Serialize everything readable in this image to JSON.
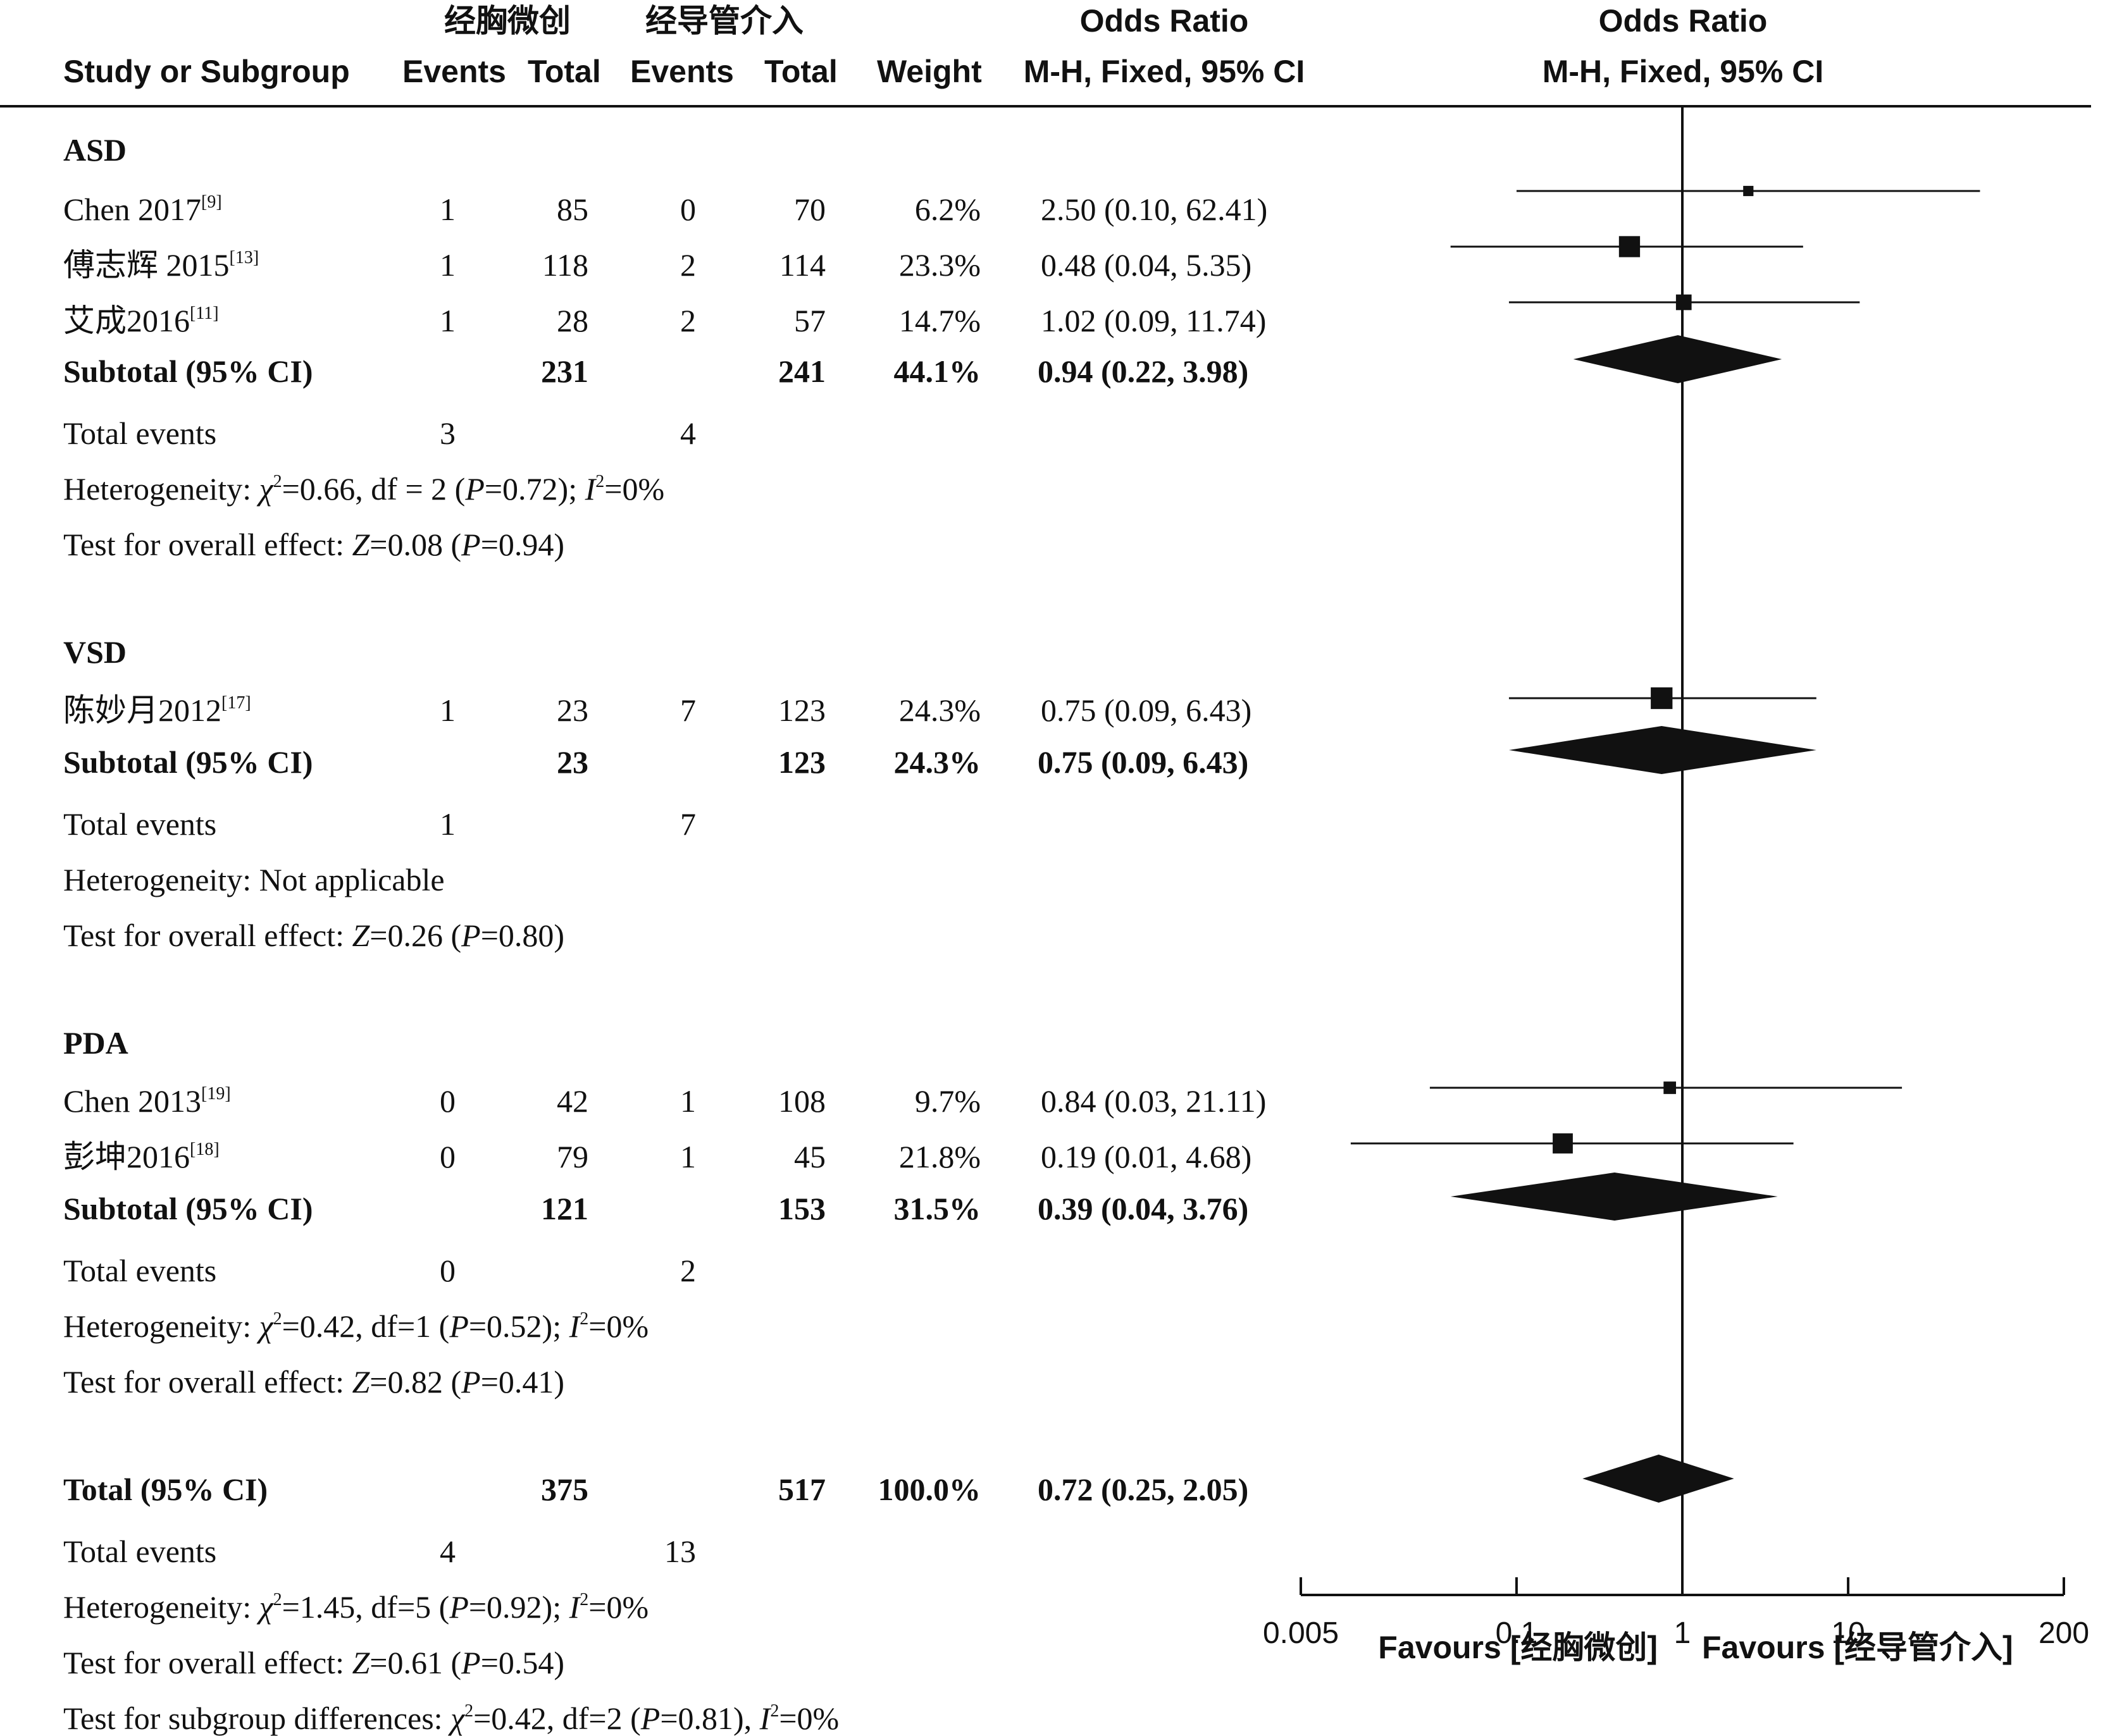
{
  "chart_data": {
    "type": "forest",
    "header": {
      "col_study": "Study or Subgroup",
      "group1": "经胸微创",
      "group2": "经导管介入",
      "events": "Events",
      "total": "Total",
      "weight": "Weight",
      "or_title": "Odds Ratio",
      "or_method": "M-H, Fixed, 95% CI"
    },
    "subgroups": [
      {
        "label": "ASD",
        "studies": [
          {
            "name": "Chen 2017",
            "ref": "[9]",
            "e1": "1",
            "t1": "85",
            "e2": "0",
            "t2": "70",
            "weight": "6.2%",
            "ci_text": "2.50 (0.10, 62.41)",
            "or": 2.5,
            "lo": 0.1,
            "hi": 62.41,
            "w": 6.2
          },
          {
            "name": "傅志辉 2015",
            "ref": "[13]",
            "e1": "1",
            "t1": "118",
            "e2": "2",
            "t2": "114",
            "weight": "23.3%",
            "ci_text": "0.48 (0.04, 5.35)",
            "or": 0.48,
            "lo": 0.04,
            "hi": 5.35,
            "w": 23.3
          },
          {
            "name": "艾成2016",
            "ref": "[11]",
            "e1": "1",
            "t1": "28",
            "e2": "2",
            "t2": "57",
            "weight": "14.7%",
            "ci_text": "1.02 (0.09, 11.74)",
            "or": 1.02,
            "lo": 0.09,
            "hi": 11.74,
            "w": 14.7
          }
        ],
        "subtotal": {
          "label": "Subtotal (95% CI)",
          "t1": "231",
          "t2": "241",
          "weight": "44.1%",
          "ci_text": "0.94 (0.22, 3.98)",
          "or": 0.94,
          "lo": 0.22,
          "hi": 3.98
        },
        "total_events": {
          "label": "Total events",
          "e1": "3",
          "e2": "4"
        },
        "het_parts": [
          "Heterogeneity: ",
          "χ",
          "2",
          "=0.66, df = 2 (",
          "P",
          "=0.72); ",
          "I",
          "2",
          "=0%"
        ],
        "test_parts": [
          "Test for overall effect: ",
          "Z",
          "=0.08 (",
          "P",
          "=0.94)"
        ]
      },
      {
        "label": "VSD",
        "studies": [
          {
            "name": "陈妙月2012",
            "ref": "[17]",
            "e1": "1",
            "t1": "23",
            "e2": "7",
            "t2": "123",
            "weight": "24.3%",
            "ci_text": "0.75 (0.09, 6.43)",
            "or": 0.75,
            "lo": 0.09,
            "hi": 6.43,
            "w": 24.3
          }
        ],
        "subtotal": {
          "label": "Subtotal (95% CI)",
          "t1": "23",
          "t2": "123",
          "weight": "24.3%",
          "ci_text": "0.75 (0.09, 6.43)",
          "or": 0.75,
          "lo": 0.09,
          "hi": 6.43
        },
        "total_events": {
          "label": "Total events",
          "e1": "1",
          "e2": "7"
        },
        "het_text": "Heterogeneity: Not applicable",
        "test_parts": [
          "Test for overall effect: ",
          "Z",
          "=0.26 (",
          "P",
          "=0.80)"
        ]
      },
      {
        "label": "PDA",
        "studies": [
          {
            "name": "Chen 2013",
            "ref": "[19]",
            "e1": "0",
            "t1": "42",
            "e2": "1",
            "t2": "108",
            "weight": "9.7%",
            "ci_text": "0.84 (0.03, 21.11)",
            "or": 0.84,
            "lo": 0.03,
            "hi": 21.11,
            "w": 9.7
          },
          {
            "name": "彭坤2016",
            "ref": "[18]",
            "e1": "0",
            "t1": "79",
            "e2": "1",
            "t2": "45",
            "weight": "21.8%",
            "ci_text": "0.19 (0.01, 4.68)",
            "or": 0.19,
            "lo": 0.01,
            "hi": 4.68,
            "w": 21.8
          }
        ],
        "subtotal": {
          "label": "Subtotal (95% CI)",
          "t1": "121",
          "t2": "153",
          "weight": "31.5%",
          "ci_text": "0.39 (0.04, 3.76)",
          "or": 0.39,
          "lo": 0.04,
          "hi": 3.76
        },
        "total_events": {
          "label": "Total events",
          "e1": "0",
          "e2": "2"
        },
        "het_parts": [
          "Heterogeneity: ",
          "χ",
          "2",
          "=0.42, df=1 (",
          "P",
          "=0.52); ",
          "I",
          "2",
          "=0%"
        ],
        "test_parts": [
          "Test for overall effect: ",
          "Z",
          "=0.82 (",
          "P",
          "=0.41)"
        ]
      }
    ],
    "overall": {
      "label": "Total (95% CI)",
      "t1": "375",
      "t2": "517",
      "weight": "100.0%",
      "ci_text": "0.72 (0.25, 2.05)",
      "or": 0.72,
      "lo": 0.25,
      "hi": 2.05,
      "total_events": {
        "label": "Total events",
        "e1": "4",
        "e2": "13"
      },
      "het_parts": [
        "Heterogeneity: ",
        "χ",
        "2",
        "=1.45, df=5 (",
        "P",
        "=0.92); ",
        "I",
        "2",
        "=0%"
      ],
      "test_parts": [
        "Test for overall effect: ",
        "Z",
        "=0.61 (",
        "P",
        "=0.54)"
      ],
      "subgroup_parts": [
        "Test for subgroup differences: ",
        "χ",
        "2",
        "=0.42, df=2 (",
        "P",
        "=0.81), ",
        "I",
        "2",
        "=0%"
      ]
    },
    "axis": {
      "scale": "log",
      "xlim": [
        0.005,
        200
      ],
      "ticks": [
        0.005,
        0.1,
        1,
        10,
        200
      ],
      "tick_labels": [
        "0.005",
        "0.1",
        "1",
        "10",
        "200"
      ],
      "favours_left": "Favours [经胸微创]",
      "favours_right": "Favours [经导管介入]"
    },
    "colors": {
      "ink": "#111111",
      "marker": "#111111"
    }
  }
}
